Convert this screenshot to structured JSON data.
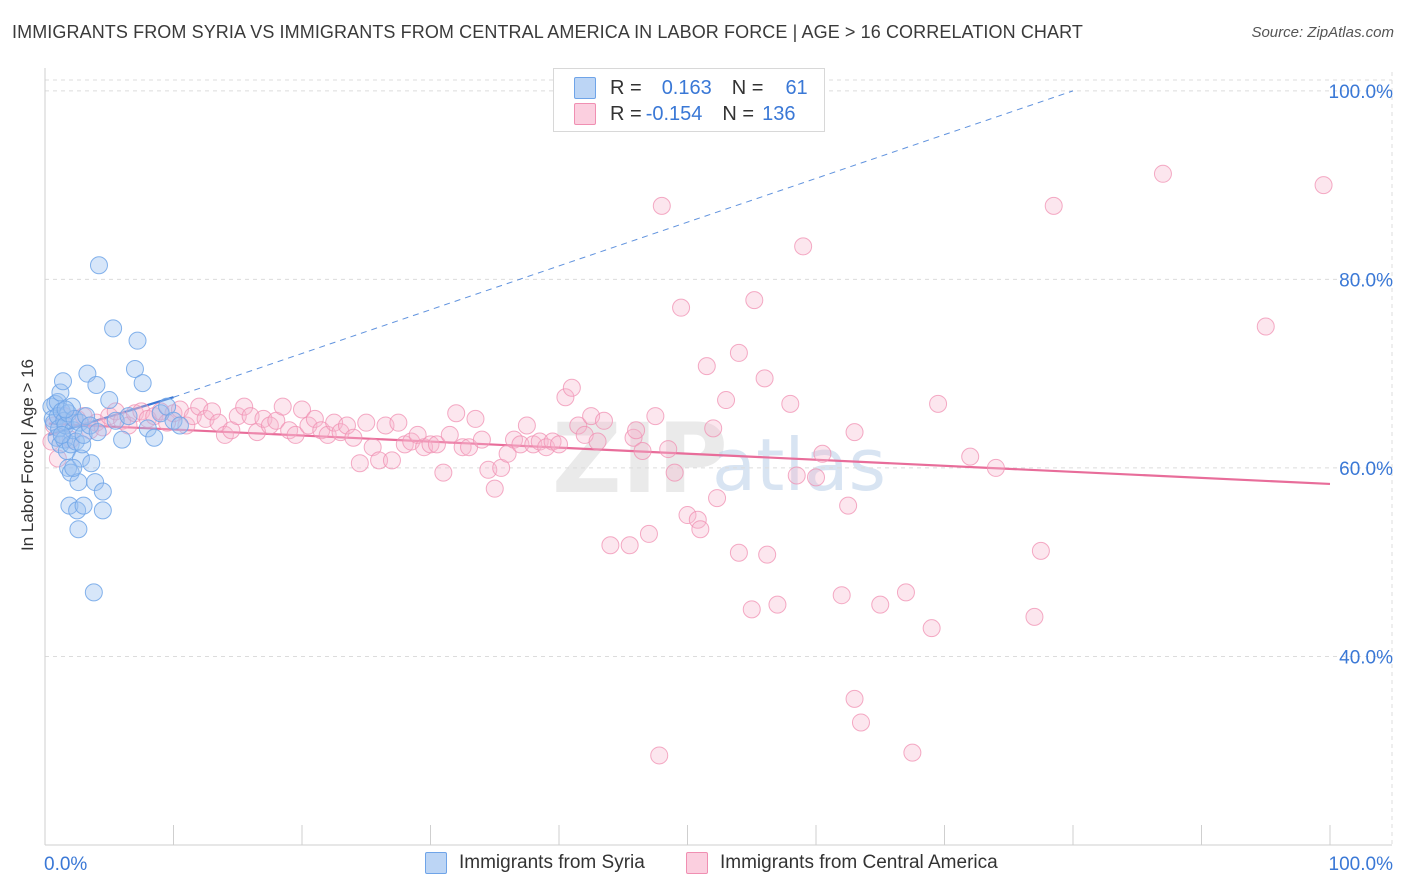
{
  "title": "IMMIGRANTS FROM SYRIA VS IMMIGRANTS FROM CENTRAL AMERICA IN LABOR FORCE | AGE > 16 CORRELATION CHART",
  "source": "Source: ZipAtlas.com",
  "watermark": {
    "zip": "ZIP",
    "atlas": "atlas"
  },
  "legend_top": {
    "rows": [
      {
        "r_label": "R =",
        "r_value": "0.163",
        "n_label": "N =",
        "n_value": "61"
      },
      {
        "r_label": "R =",
        "r_value": "-0.154",
        "n_label": "N =",
        "n_value": "136"
      }
    ]
  },
  "colors": {
    "syria": "#6fa4e8",
    "central_america": "#f08fb2",
    "syria_line": "#3a78d6",
    "ca_line": "#e86d9a",
    "tick_label": "#3a78d6"
  },
  "chart_data": {
    "type": "scatter",
    "title": "IMMIGRANTS FROM SYRIA VS IMMIGRANTS FROM CENTRAL AMERICA IN LABOR FORCE | AGE > 16 CORRELATION CHART",
    "xlabel": "",
    "ylabel": "In Labor Force | Age > 16",
    "xlim": [
      0,
      100
    ],
    "ylim": [
      20,
      102
    ],
    "x_tick_labels": [
      "0.0%",
      "100.0%"
    ],
    "y_ticks": [
      40,
      60,
      80,
      100
    ],
    "y_tick_labels": [
      "40.0%",
      "60.0%",
      "80.0%",
      "100.0%"
    ],
    "grid": true,
    "legend_position": "bottom",
    "series": [
      {
        "name": "Immigrants from Syria",
        "trend": {
          "x": [
            0.3,
            10
          ],
          "y": [
            63.5,
            67.5
          ],
          "extended_to": [
            80,
            100
          ]
        },
        "points": [
          [
            0.5,
            66.5
          ],
          [
            0.6,
            65.2
          ],
          [
            0.7,
            64.8
          ],
          [
            0.8,
            66.8
          ],
          [
            0.9,
            63.2
          ],
          [
            1.0,
            67.0
          ],
          [
            1.0,
            65.5
          ],
          [
            1.1,
            64.2
          ],
          [
            1.2,
            68.0
          ],
          [
            1.2,
            62.5
          ],
          [
            1.3,
            66.0
          ],
          [
            1.4,
            69.2
          ],
          [
            1.5,
            65.0
          ],
          [
            1.5,
            63.0
          ],
          [
            1.6,
            64.5
          ],
          [
            1.7,
            61.8
          ],
          [
            1.8,
            60.0
          ],
          [
            1.8,
            65.8
          ],
          [
            1.9,
            56.0
          ],
          [
            2.0,
            59.5
          ],
          [
            2.0,
            62.5
          ],
          [
            2.1,
            66.5
          ],
          [
            2.2,
            64.0
          ],
          [
            2.3,
            65.2
          ],
          [
            2.4,
            62.8
          ],
          [
            2.5,
            55.5
          ],
          [
            2.6,
            53.5
          ],
          [
            2.6,
            58.5
          ],
          [
            2.7,
            64.8
          ],
          [
            2.8,
            61.0
          ],
          [
            2.9,
            62.5
          ],
          [
            3.0,
            63.5
          ],
          [
            3.0,
            56.0
          ],
          [
            3.2,
            65.5
          ],
          [
            3.3,
            70.0
          ],
          [
            3.5,
            64.5
          ],
          [
            3.6,
            60.5
          ],
          [
            3.8,
            46.8
          ],
          [
            3.9,
            58.5
          ],
          [
            4.0,
            68.8
          ],
          [
            4.1,
            63.8
          ],
          [
            4.2,
            81.5
          ],
          [
            4.5,
            57.5
          ],
          [
            4.5,
            55.5
          ],
          [
            5.0,
            67.2
          ],
          [
            5.3,
            74.8
          ],
          [
            5.5,
            65.0
          ],
          [
            6.0,
            63.0
          ],
          [
            6.5,
            65.5
          ],
          [
            7.0,
            70.5
          ],
          [
            7.2,
            73.5
          ],
          [
            7.6,
            69.0
          ],
          [
            8.0,
            64.2
          ],
          [
            8.5,
            63.2
          ],
          [
            9.0,
            65.8
          ],
          [
            9.5,
            66.5
          ],
          [
            10.0,
            65.0
          ],
          [
            10.5,
            64.5
          ],
          [
            1.3,
            63.5
          ],
          [
            2.2,
            60.0
          ],
          [
            1.6,
            66.2
          ]
        ]
      },
      {
        "name": "Immigrants from Central America",
        "trend": {
          "x": [
            0.3,
            100
          ],
          "y": [
            64.7,
            58.3
          ]
        },
        "points": [
          [
            0.5,
            62.8
          ],
          [
            0.7,
            64.5
          ],
          [
            1.0,
            61.0
          ],
          [
            1.5,
            65.5
          ],
          [
            2.0,
            63.0
          ],
          [
            2.5,
            65.2
          ],
          [
            3.0,
            65.5
          ],
          [
            3.5,
            64.0
          ],
          [
            4.0,
            64.8
          ],
          [
            4.5,
            64.3
          ],
          [
            5.0,
            65.5
          ],
          [
            5.5,
            66.0
          ],
          [
            6.0,
            65.0
          ],
          [
            6.5,
            64.5
          ],
          [
            7.0,
            65.8
          ],
          [
            7.5,
            66.0
          ],
          [
            8.0,
            65.2
          ],
          [
            8.5,
            65.5
          ],
          [
            9.0,
            66.0
          ],
          [
            9.5,
            64.8
          ],
          [
            10.0,
            65.8
          ],
          [
            10.5,
            66.2
          ],
          [
            11.0,
            64.5
          ],
          [
            11.5,
            65.5
          ],
          [
            12.0,
            66.5
          ],
          [
            12.5,
            65.2
          ],
          [
            13.0,
            66.0
          ],
          [
            13.5,
            64.8
          ],
          [
            14.0,
            63.5
          ],
          [
            14.5,
            64.0
          ],
          [
            15.0,
            65.5
          ],
          [
            15.5,
            66.5
          ],
          [
            16.0,
            65.5
          ],
          [
            16.5,
            63.8
          ],
          [
            17.0,
            65.2
          ],
          [
            17.5,
            64.5
          ],
          [
            18.0,
            65.0
          ],
          [
            18.5,
            66.5
          ],
          [
            19.0,
            64.0
          ],
          [
            19.5,
            63.5
          ],
          [
            20.0,
            66.2
          ],
          [
            20.5,
            64.5
          ],
          [
            21.0,
            65.2
          ],
          [
            21.5,
            64.0
          ],
          [
            22.0,
            63.5
          ],
          [
            22.5,
            64.8
          ],
          [
            23.0,
            63.8
          ],
          [
            23.5,
            64.5
          ],
          [
            24.0,
            63.2
          ],
          [
            24.5,
            60.5
          ],
          [
            25.0,
            64.8
          ],
          [
            25.5,
            62.2
          ],
          [
            26.0,
            60.8
          ],
          [
            26.5,
            64.5
          ],
          [
            27.0,
            60.8
          ],
          [
            27.5,
            64.8
          ],
          [
            28.0,
            62.5
          ],
          [
            28.5,
            62.8
          ],
          [
            29.0,
            63.5
          ],
          [
            29.5,
            62.2
          ],
          [
            30.0,
            62.5
          ],
          [
            30.5,
            62.5
          ],
          [
            31.0,
            59.5
          ],
          [
            31.5,
            63.5
          ],
          [
            32.0,
            65.8
          ],
          [
            32.5,
            62.2
          ],
          [
            33.0,
            62.2
          ],
          [
            33.5,
            65.2
          ],
          [
            34.0,
            63.0
          ],
          [
            34.5,
            59.8
          ],
          [
            35.0,
            57.8
          ],
          [
            35.5,
            60.0
          ],
          [
            36.0,
            61.5
          ],
          [
            36.5,
            63.0
          ],
          [
            37.0,
            62.5
          ],
          [
            37.5,
            64.5
          ],
          [
            38.0,
            62.5
          ],
          [
            38.5,
            62.8
          ],
          [
            39.0,
            62.2
          ],
          [
            39.5,
            62.8
          ],
          [
            40.0,
            62.5
          ],
          [
            40.5,
            67.5
          ],
          [
            41.0,
            68.5
          ],
          [
            41.5,
            64.5
          ],
          [
            42.0,
            63.5
          ],
          [
            42.5,
            65.5
          ],
          [
            43.0,
            62.8
          ],
          [
            43.5,
            65.0
          ],
          [
            44.0,
            51.8
          ],
          [
            45.5,
            51.8
          ],
          [
            45.8,
            63.2
          ],
          [
            46.0,
            64.0
          ],
          [
            46.5,
            61.8
          ],
          [
            47.0,
            53.0
          ],
          [
            47.5,
            65.5
          ],
          [
            47.8,
            29.5
          ],
          [
            48.0,
            87.8
          ],
          [
            48.5,
            62.0
          ],
          [
            49.0,
            59.5
          ],
          [
            49.5,
            77.0
          ],
          [
            50.0,
            55.0
          ],
          [
            50.8,
            54.5
          ],
          [
            51.0,
            53.5
          ],
          [
            51.5,
            70.8
          ],
          [
            52.0,
            64.2
          ],
          [
            52.3,
            56.8
          ],
          [
            53.0,
            67.2
          ],
          [
            54.0,
            72.2
          ],
          [
            54.0,
            51.0
          ],
          [
            55.0,
            45.0
          ],
          [
            55.2,
            77.8
          ],
          [
            56.0,
            69.5
          ],
          [
            56.2,
            50.8
          ],
          [
            57.0,
            45.5
          ],
          [
            58.0,
            66.8
          ],
          [
            58.5,
            59.2
          ],
          [
            59.0,
            83.5
          ],
          [
            60.0,
            59.0
          ],
          [
            60.5,
            61.5
          ],
          [
            62.0,
            46.5
          ],
          [
            62.5,
            56.0
          ],
          [
            63.0,
            63.8
          ],
          [
            63.0,
            35.5
          ],
          [
            63.5,
            33.0
          ],
          [
            65.0,
            45.5
          ],
          [
            67.0,
            46.8
          ],
          [
            67.5,
            29.8
          ],
          [
            69.0,
            43.0
          ],
          [
            69.5,
            66.8
          ],
          [
            72.0,
            61.2
          ],
          [
            74.0,
            60.0
          ],
          [
            77.0,
            44.2
          ],
          [
            77.5,
            51.2
          ],
          [
            78.5,
            87.8
          ],
          [
            87.0,
            91.2
          ],
          [
            95.0,
            75.0
          ],
          [
            99.5,
            90.0
          ]
        ]
      }
    ]
  },
  "bottom_legend": {
    "items": [
      {
        "label": "Immigrants from Syria"
      },
      {
        "label": "Immigrants from Central America"
      }
    ]
  }
}
